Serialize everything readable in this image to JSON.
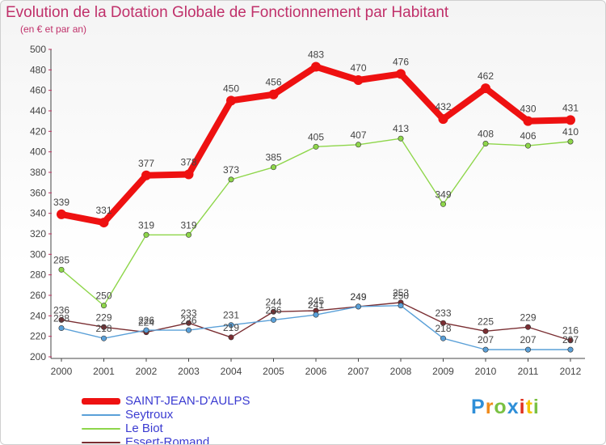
{
  "chart_data": {
    "type": "line",
    "title": "Evolution de la Dotation Globale de Fonctionnement par Habitant",
    "subtitle": "(en € et par an)",
    "xlabel": "",
    "ylabel": "",
    "ylim": [
      200,
      500
    ],
    "yticks": [
      200,
      220,
      240,
      260,
      280,
      300,
      320,
      340,
      360,
      380,
      400,
      420,
      440,
      460,
      480,
      500
    ],
    "categories": [
      "2000",
      "2001",
      "2002",
      "2003",
      "2004",
      "2005",
      "2006",
      "2007",
      "2008",
      "2009",
      "2010",
      "2011",
      "2012"
    ],
    "series": [
      {
        "name": "SAINT-JEAN-D'AULPS",
        "color": "#ee1111",
        "values": [
          339,
          331,
          377,
          378,
          450,
          456,
          483,
          470,
          476,
          432,
          462,
          430,
          431
        ],
        "labels": [
          "339",
          "331",
          "377",
          "378",
          "450",
          "456",
          "483",
          "470",
          "476",
          "432",
          "462",
          "430",
          "431"
        ]
      },
      {
        "name": "Seytroux",
        "color": "#5aa0d8",
        "values": [
          228,
          218,
          226,
          226,
          231,
          236,
          241,
          249,
          250,
          218,
          207,
          207,
          207
        ],
        "labels": [
          "228",
          "218",
          "226",
          "226",
          "231",
          "236",
          "241",
          "249",
          "250",
          "218",
          "207",
          "207",
          "207"
        ]
      },
      {
        "name": "Le Biot",
        "color": "#8ed64a",
        "values": [
          285,
          250,
          319,
          319,
          373,
          385,
          405,
          407,
          413,
          349,
          408,
          406,
          410
        ],
        "labels": [
          "285",
          "250",
          "319",
          "319",
          "373",
          "385",
          "405",
          "407",
          "413",
          "349",
          "408",
          "406",
          "410"
        ]
      },
      {
        "name": "Essert-Romand",
        "color": "#7a2e32",
        "values": [
          236,
          229,
          224,
          233,
          219,
          244,
          245,
          249,
          253,
          233,
          225,
          229,
          216
        ],
        "labels": [
          "236",
          "229",
          "224",
          "233",
          "219",
          "244",
          "245",
          "249",
          "253",
          "233",
          "225",
          "229",
          "216"
        ]
      }
    ],
    "legend_position": "bottom-left",
    "grid": false
  },
  "logo": {
    "letters": [
      "P",
      "r",
      "o",
      "x",
      "i",
      "t",
      "i"
    ],
    "colors": [
      "#2f8fd8",
      "#f08a1a",
      "#7ac143",
      "#2f8fd8",
      "#e0301e",
      "#f2c500",
      "#7ac143"
    ]
  }
}
